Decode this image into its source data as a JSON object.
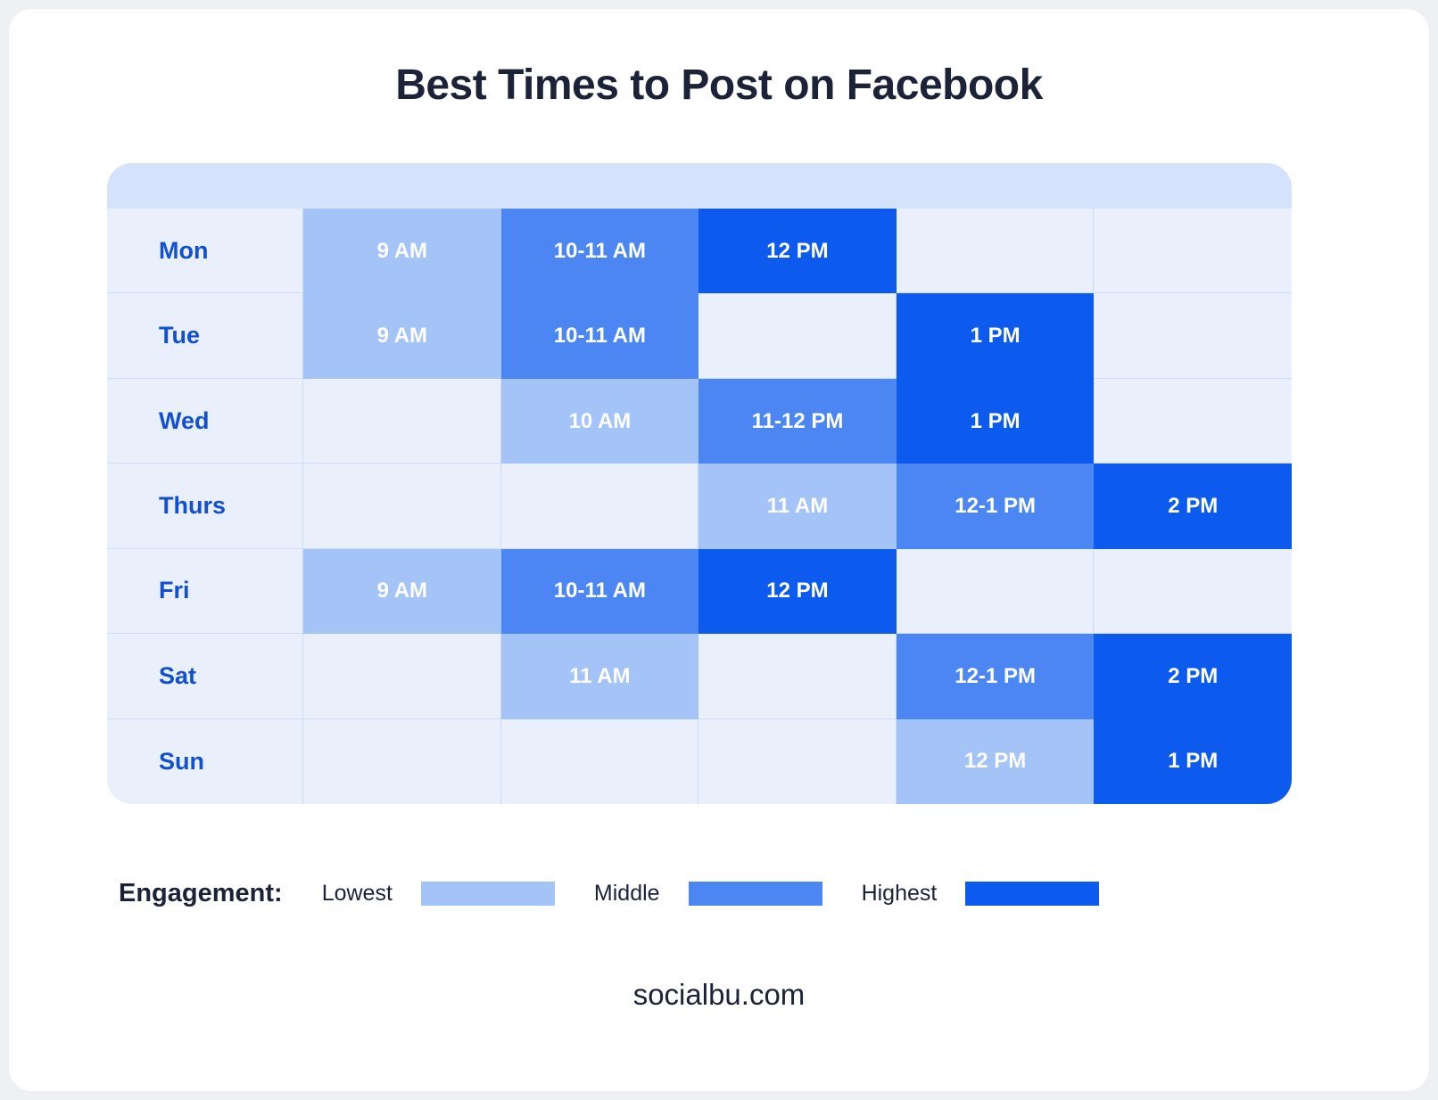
{
  "title": "Best Times to Post on Facebook",
  "footer": "socialbu.com",
  "colors": {
    "lowest": "#a4c3f7",
    "middle": "#4b86f3",
    "highest": "#0c5bee",
    "empty_cell": "#e9effb",
    "header_strip": "#d4e2fb",
    "grid_line": "#ccdcf8",
    "day_label": "#1150d0",
    "title_text": "#1c2338"
  },
  "chart_data": {
    "type": "heatmap",
    "title": "Best Times to Post on Facebook",
    "columns": 5,
    "legend": {
      "label": "Engagement:",
      "levels": [
        {
          "name": "Lowest",
          "color": "#a4c3f7"
        },
        {
          "name": "Middle",
          "color": "#4b86f3"
        },
        {
          "name": "Highest",
          "color": "#0c5bee"
        }
      ]
    },
    "rows": [
      {
        "day": "Mon",
        "slots": [
          {
            "label": "9 AM",
            "level": "lowest"
          },
          {
            "label": "10-11 AM",
            "level": "middle"
          },
          {
            "label": "12 PM",
            "level": "highest"
          },
          null,
          null
        ]
      },
      {
        "day": "Tue",
        "slots": [
          {
            "label": "9 AM",
            "level": "lowest"
          },
          {
            "label": "10-11 AM",
            "level": "middle"
          },
          null,
          {
            "label": "1 PM",
            "level": "highest"
          },
          null
        ]
      },
      {
        "day": "Wed",
        "slots": [
          null,
          {
            "label": "10 AM",
            "level": "lowest"
          },
          {
            "label": "11-12 PM",
            "level": "middle"
          },
          {
            "label": "1 PM",
            "level": "highest"
          },
          null
        ]
      },
      {
        "day": "Thurs",
        "slots": [
          null,
          null,
          {
            "label": "11 AM",
            "level": "lowest"
          },
          {
            "label": "12-1 PM",
            "level": "middle"
          },
          {
            "label": "2 PM",
            "level": "highest"
          }
        ]
      },
      {
        "day": "Fri",
        "slots": [
          {
            "label": "9 AM",
            "level": "lowest"
          },
          {
            "label": "10-11 AM",
            "level": "middle"
          },
          {
            "label": "12 PM",
            "level": "highest"
          },
          null,
          null
        ]
      },
      {
        "day": "Sat",
        "slots": [
          null,
          {
            "label": "11 AM",
            "level": "lowest"
          },
          null,
          {
            "label": "12-1 PM",
            "level": "middle"
          },
          {
            "label": "2 PM",
            "level": "highest"
          }
        ]
      },
      {
        "day": "Sun",
        "slots": [
          null,
          null,
          null,
          {
            "label": "12 PM",
            "level": "lowest"
          },
          {
            "label": "1 PM",
            "level": "highest"
          }
        ]
      }
    ]
  }
}
